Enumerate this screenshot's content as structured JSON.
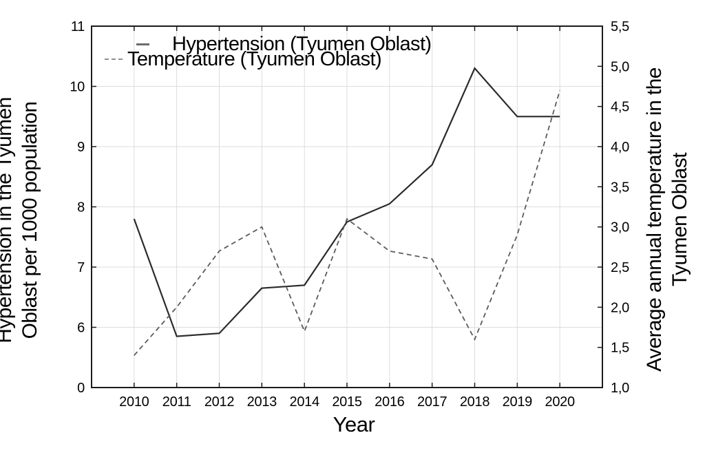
{
  "chart_data": {
    "type": "line",
    "x": [
      2010,
      2011,
      2012,
      2013,
      2014,
      2015,
      2016,
      2017,
      2018,
      2019,
      2020
    ],
    "xlabel": "Year",
    "series": [
      {
        "name": "Hypertension (Tyumen Oblast)",
        "axis": "left",
        "style": "solid",
        "color": "#2a2a2a",
        "values": [
          7.8,
          5.85,
          5.9,
          6.65,
          6.7,
          7.75,
          8.05,
          8.7,
          10.3,
          9.5,
          9.5
        ]
      },
      {
        "name": "Temperature (Tyumen Oblast)",
        "axis": "right",
        "style": "dashed",
        "color": "#5a5a5a",
        "values": [
          1.4,
          2.0,
          2.7,
          3.0,
          1.7,
          3.1,
          2.7,
          2.6,
          1.6,
          2.9,
          4.7
        ]
      }
    ],
    "left_axis": {
      "title_lines": [
        "Hypertension in the Tyumen",
        "Oblast per 1000 population"
      ],
      "tick_labels": [
        "11",
        "10",
        "9",
        "8",
        "7",
        "6",
        "0"
      ],
      "top_value": 11,
      "units_per_tick": 1
    },
    "right_axis": {
      "title_lines": [
        "Average annual temperature in the",
        "Tyumen Oblast"
      ],
      "tick_labels": [
        "5,5",
        "5,0",
        "4,5",
        "4,0",
        "3,5",
        "3,0",
        "2,5",
        "2,0",
        "1,5",
        "1,0"
      ],
      "range": [
        1.0,
        5.5
      ]
    },
    "legend": {
      "items": [
        {
          "label": "Hypertension (Tyumen Oblast)",
          "marker": "solid-line"
        },
        {
          "label": "Temperature (Tyumen Oblast)",
          "marker": "dashed-line"
        }
      ]
    },
    "grid": true,
    "colors": {
      "grid": "#dcdcdc",
      "border": "#1a1a1a",
      "tick": "#1a1a1a",
      "text": "#000000",
      "legend_solid_marker": "#6b6b6b",
      "legend_dashed_marker": "#8f8f8f"
    }
  }
}
